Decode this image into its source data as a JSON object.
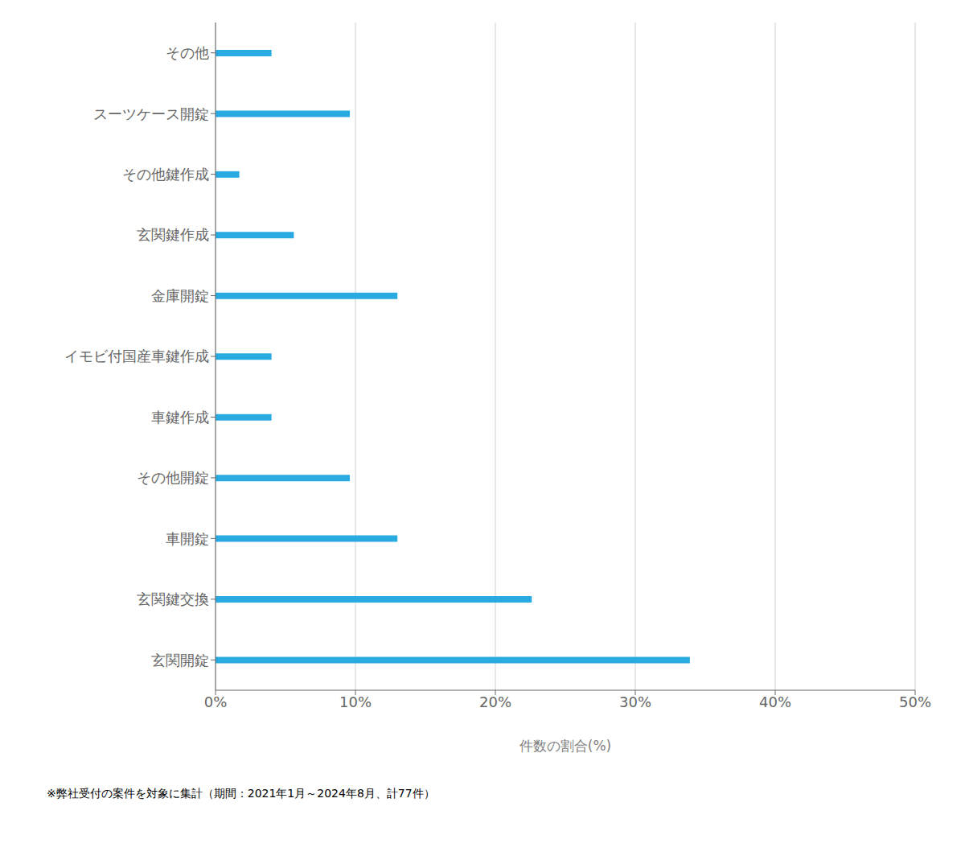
{
  "chart_data": {
    "type": "bar",
    "orientation": "horizontal",
    "categories": [
      "玄関開錠",
      "玄関鍵交換",
      "車開錠",
      "その他開錠",
      "車鍵作成",
      "イモビ付国産車鍵作成",
      "金庫開錠",
      "玄関鍵作成",
      "その他鍵作成",
      "スーツケース開錠",
      "その他"
    ],
    "values": [
      33.9,
      22.6,
      13.0,
      9.6,
      4.0,
      4.0,
      13.0,
      5.6,
      1.7,
      9.6,
      4.0
    ],
    "color": "#29ABE2",
    "xlim": [
      0,
      50
    ],
    "xticks": [
      {
        "value": 0,
        "label": "0%"
      },
      {
        "value": 10,
        "label": "10%"
      },
      {
        "value": 20,
        "label": "20%"
      },
      {
        "value": 30,
        "label": "30%"
      },
      {
        "value": 40,
        "label": "40%"
      },
      {
        "value": 50,
        "label": "50%"
      }
    ],
    "xlabel": "件数の割合(%)",
    "grid": "x",
    "footnote": "※弊社受付の案件を対象に集計（期間：2021年1月～2024年8月、計77件）"
  }
}
